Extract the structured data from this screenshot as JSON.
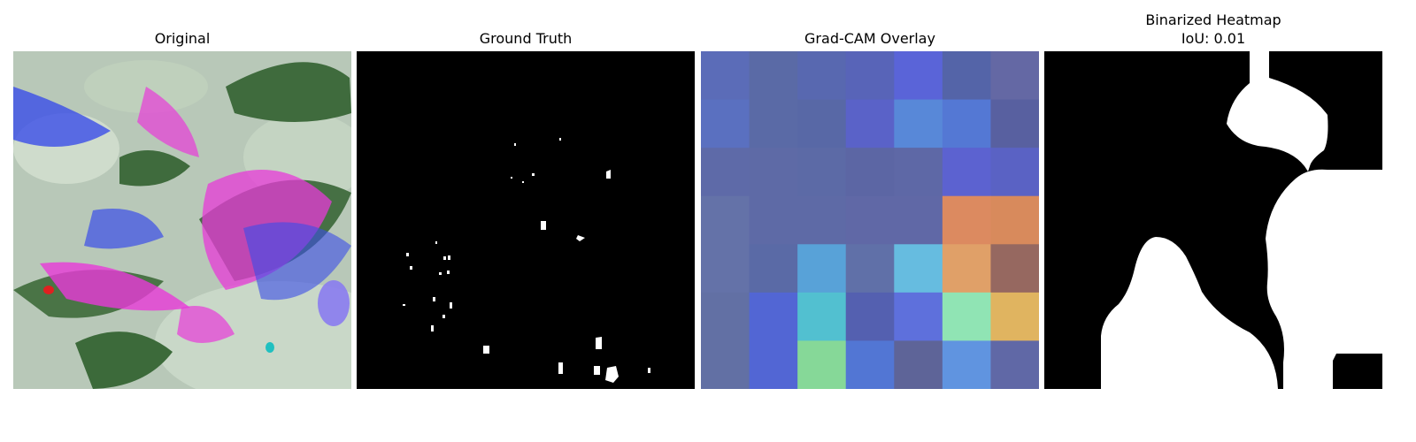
{
  "panels": [
    {
      "title": "Original"
    },
    {
      "title": "Ground Truth"
    },
    {
      "title": "Grad-CAM Overlay"
    },
    {
      "title": "Binarized Heatmap\nIoU: 0.01"
    }
  ],
  "colors": {
    "background": "#ffffff",
    "mask_bg": "#000000",
    "mask_fg": "#ffffff",
    "leaf_pale": "#c9d8c8",
    "leaf_dark": "#3f6b3d",
    "magenta": "#e83ad8",
    "blue": "#3a4de8"
  },
  "gradcam_grid": [
    [
      "#5b6cb8",
      "#5a6aa6",
      "#5868b0",
      "#5864b8",
      "#5a64d8",
      "#5464a8",
      "#6468a4"
    ],
    [
      "#5a70c0",
      "#5a6aa6",
      "#5868a6",
      "#5a62c8",
      "#5888d8",
      "#5478d4",
      "#5860a0"
    ],
    [
      "#5e6aa8",
      "#5e6aa6",
      "#5c6aa6",
      "#5c66a4",
      "#5e68a6",
      "#5c62d0",
      "#5a62c4"
    ],
    [
      "#6472a8",
      "#5e6aa6",
      "#5e6aa6",
      "#6068a6",
      "#6068a6",
      "#dc8a60",
      "#d88a5c"
    ],
    [
      "#6472a8",
      "#5a6aa6",
      "#58a2d8",
      "#6070a8",
      "#66bce0",
      "#e0a068",
      "#966860"
    ],
    [
      "#6270a4",
      "#5266d4",
      "#52c0d0",
      "#5460b0",
      "#5e70dc",
      "#90e4b4",
      "#e0b460"
    ],
    [
      "#6270a4",
      "#5266d4",
      "#86d898",
      "#5276d4",
      "#5e6498",
      "#6094e0",
      "#6068a6"
    ]
  ]
}
